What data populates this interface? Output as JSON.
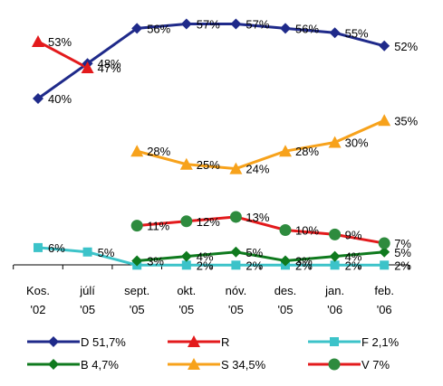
{
  "chart_data": {
    "type": "line",
    "title": "",
    "xlabel": "",
    "ylabel": "",
    "ylim": [
      0,
      60
    ],
    "grid": false,
    "legend_position": "bottom",
    "categories": [
      [
        "Kos.",
        "'02"
      ],
      [
        "júlí",
        "'05"
      ],
      [
        "sept.",
        "'05"
      ],
      [
        "okt.",
        "'05"
      ],
      [
        "nóv.",
        "'05"
      ],
      [
        "des.",
        "'05"
      ],
      [
        "jan.",
        "'06"
      ],
      [
        "feb.",
        "'06"
      ]
    ],
    "series": [
      {
        "name": "D 51,7%",
        "color": "#1f2a8a",
        "marker": "diamond",
        "values": [
          40,
          48,
          56,
          57,
          57,
          56,
          55,
          52
        ],
        "labels": [
          "40%",
          "48%",
          "56%",
          "57%",
          "57%",
          "56%",
          "55%",
          "52%"
        ]
      },
      {
        "name": "R",
        "color": "#e31a1c",
        "marker": "triangle",
        "values": [
          53,
          47,
          null,
          null,
          null,
          null,
          null,
          null
        ],
        "labels": [
          "53%",
          "47%",
          "",
          "",
          "",
          "",
          "",
          ""
        ]
      },
      {
        "name": "F 2,1%",
        "color": "#3cc3c9",
        "marker": "square",
        "values": [
          6,
          5,
          2,
          2,
          2,
          2,
          2,
          2
        ],
        "labels": [
          "6%",
          "5%",
          "",
          "2%",
          "2%",
          "2%",
          "2%",
          "2%"
        ]
      },
      {
        "name": "B 4,7%",
        "color": "#0f7a1e",
        "marker": "diamond",
        "values": [
          null,
          null,
          3,
          4,
          5,
          3,
          4,
          5
        ],
        "labels": [
          "",
          "",
          "3%",
          "4%",
          "5%",
          "3%",
          "4%",
          "5%"
        ]
      },
      {
        "name": "S 34,5%",
        "color": "#f7a21b",
        "marker": "triangle",
        "values": [
          null,
          null,
          28,
          25,
          24,
          28,
          30,
          35
        ],
        "labels": [
          "",
          "",
          "28%",
          "25%",
          "24%",
          "28%",
          "30%",
          "35%"
        ]
      },
      {
        "name": "V 7%",
        "color": "#e31a1c",
        "marker": "circle",
        "marker_color": "#2e8b3e",
        "values": [
          null,
          null,
          11,
          12,
          13,
          10,
          9,
          7
        ],
        "labels": [
          "",
          "",
          "11%",
          "12%",
          "13%",
          "10%",
          "9%",
          "7%"
        ]
      }
    ]
  }
}
